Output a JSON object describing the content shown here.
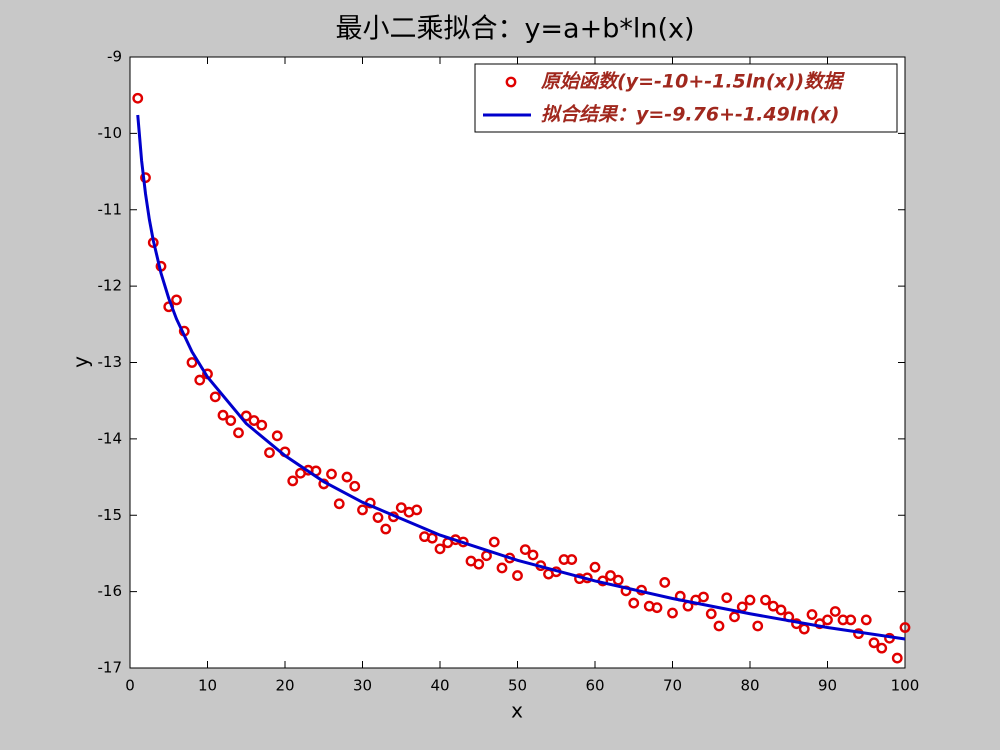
{
  "chart_data": {
    "type": "scatter",
    "title": "最小二乘拟合：y=a+b*ln(x)",
    "x_label": "x",
    "y_label": "y",
    "xlim": [
      0,
      100
    ],
    "ylim": [
      -17,
      -9
    ],
    "xticks": [
      0,
      10,
      20,
      30,
      40,
      50,
      60,
      70,
      80,
      90,
      100
    ],
    "yticks": [
      -17,
      -16,
      -15,
      -14,
      -13,
      -12,
      -11,
      -10,
      -9
    ],
    "legend": "upper right",
    "legend_text_color": "#a0281e",
    "background": "#c8c8c8",
    "series": [
      {
        "name": "原始函数(y=-10+-1.5ln(x))数据",
        "mode": "markers",
        "color": "#e00000",
        "x": [
          1,
          2,
          3,
          4,
          5,
          6,
          7,
          8,
          9,
          10,
          11,
          12,
          13,
          14,
          15,
          16,
          17,
          18,
          19,
          20,
          21,
          22,
          23,
          24,
          25,
          26,
          27,
          28,
          29,
          30,
          31,
          32,
          33,
          34,
          35,
          36,
          37,
          38,
          39,
          40,
          41,
          42,
          43,
          44,
          45,
          46,
          47,
          48,
          49,
          50,
          51,
          52,
          53,
          54,
          55,
          56,
          57,
          58,
          59,
          60,
          61,
          62,
          63,
          64,
          65,
          66,
          67,
          68,
          69,
          70,
          71,
          72,
          73,
          74,
          75,
          76,
          77,
          78,
          79,
          80,
          81,
          82,
          83,
          84,
          85,
          86,
          87,
          88,
          89,
          90,
          91,
          92,
          93,
          94,
          95,
          96,
          97,
          98,
          99,
          100
        ],
        "values": [
          -9.54,
          -10.58,
          -11.43,
          -11.74,
          -12.27,
          -12.18,
          -12.59,
          -13.0,
          -13.23,
          -13.15,
          -13.45,
          -13.69,
          -13.76,
          -13.92,
          -13.7,
          -13.76,
          -13.82,
          -14.18,
          -13.96,
          -14.17,
          -14.55,
          -14.45,
          -14.41,
          -14.42,
          -14.59,
          -14.46,
          -14.85,
          -14.5,
          -14.62,
          -14.93,
          -14.84,
          -15.03,
          -15.18,
          -15.02,
          -14.9,
          -14.96,
          -14.93,
          -15.28,
          -15.3,
          -15.44,
          -15.36,
          -15.32,
          -15.35,
          -15.6,
          -15.64,
          -15.53,
          -15.35,
          -15.69,
          -15.56,
          -15.79,
          -15.45,
          -15.52,
          -15.66,
          -15.77,
          -15.74,
          -15.58,
          -15.58,
          -15.83,
          -15.82,
          -15.68,
          -15.86,
          -15.79,
          -15.85,
          -15.99,
          -16.15,
          -15.98,
          -16.19,
          -16.21,
          -15.88,
          -16.28,
          -16.06,
          -16.19,
          -16.11,
          -16.07,
          -16.29,
          -16.45,
          -16.08,
          -16.33,
          -16.2,
          -16.11,
          -16.45,
          -16.11,
          -16.19,
          -16.24,
          -16.33,
          -16.42,
          -16.49,
          -16.3,
          -16.42,
          -16.37,
          -16.26,
          -16.37,
          -16.37,
          -16.55,
          -16.37,
          -16.67,
          -16.74,
          -16.61,
          -16.87,
          -16.47
        ]
      },
      {
        "name": "拟合结果：y=-9.76+-1.49ln(x)",
        "mode": "line",
        "color": "#0000cc",
        "x": [
          1,
          1.5,
          2,
          2.5,
          3,
          4,
          5,
          6,
          8,
          10,
          15,
          20,
          25,
          30,
          40,
          50,
          60,
          70,
          80,
          90,
          100
        ],
        "values": [
          -9.76,
          -10.36,
          -10.79,
          -11.13,
          -11.4,
          -11.83,
          -12.16,
          -12.43,
          -12.86,
          -13.19,
          -13.8,
          -14.22,
          -14.56,
          -14.83,
          -15.26,
          -15.59,
          -15.86,
          -16.09,
          -16.29,
          -16.47,
          -16.62
        ]
      }
    ]
  }
}
